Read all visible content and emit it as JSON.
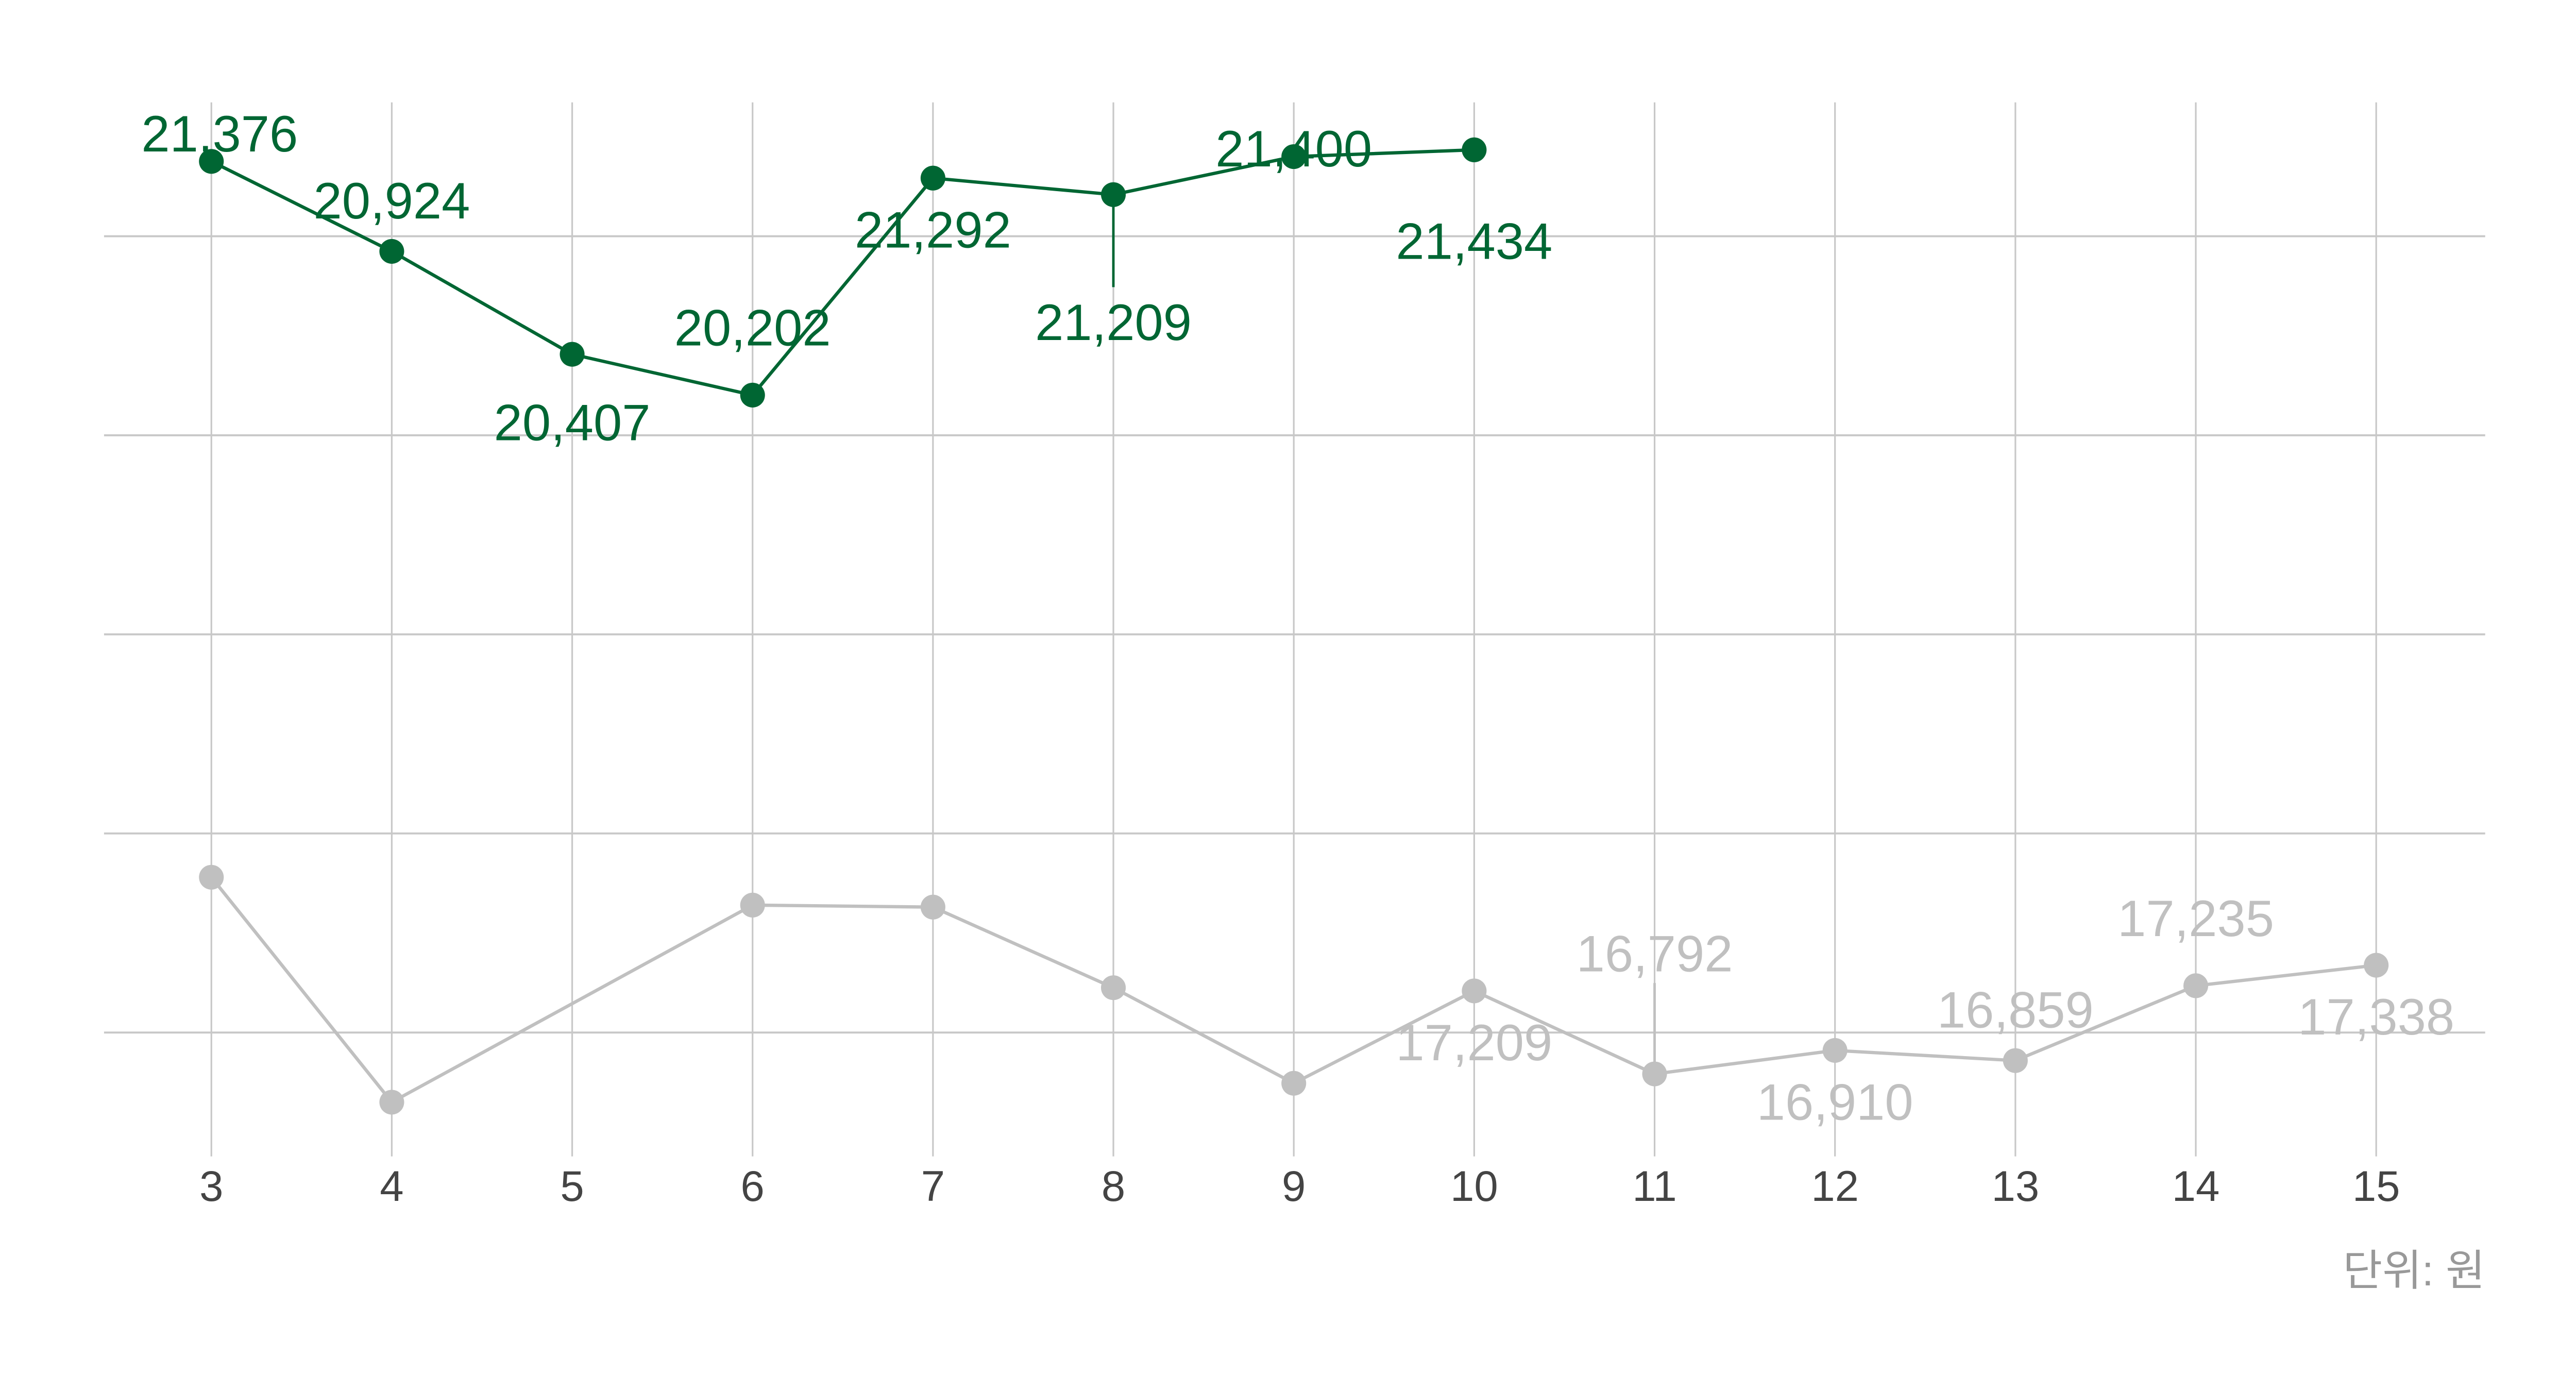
{
  "chart_data": {
    "type": "line",
    "x": [
      3,
      4,
      5,
      6,
      7,
      8,
      9,
      10,
      11,
      12,
      13,
      14,
      15
    ],
    "xticks": [
      "3",
      "4",
      "5",
      "6",
      "7",
      "8",
      "9",
      "10",
      "11",
      "12",
      "13",
      "14",
      "15"
    ],
    "ylim": [
      16380,
      21670
    ],
    "ygrid": [
      17000,
      18000,
      19000,
      20000,
      21000
    ],
    "grid": true,
    "yaxis_labels_shown": false,
    "unit_label": "단위: 원",
    "series": [
      {
        "color": "#006633",
        "x": [
          3,
          4,
          5,
          6,
          7,
          8,
          9,
          10
        ],
        "values": [
          21376,
          20924,
          20407,
          20202,
          21292,
          21209,
          21400,
          21434
        ],
        "labels": [
          "21,376",
          "20,924",
          "20,407",
          "20,202",
          "21,292",
          "21,209",
          "21,400",
          "21,434"
        ]
      },
      {
        "color": "#c0c0c0",
        "x": [
          3,
          4,
          5,
          6,
          7,
          8,
          9,
          10,
          11,
          12,
          13,
          14,
          15
        ],
        "values": [
          17780,
          16650,
          null,
          17640,
          17630,
          17225,
          16745,
          17209,
          16792,
          16910,
          16859,
          17235,
          17338
        ],
        "labels": [
          null,
          null,
          null,
          null,
          null,
          null,
          null,
          "17,209",
          "16,792",
          "16,910",
          "16,859",
          "17,235",
          "17,338"
        ]
      }
    ],
    "colors": {
      "grid": "#c8c8c8",
      "tick_text": "#444444",
      "unit_text": "#999999"
    }
  }
}
